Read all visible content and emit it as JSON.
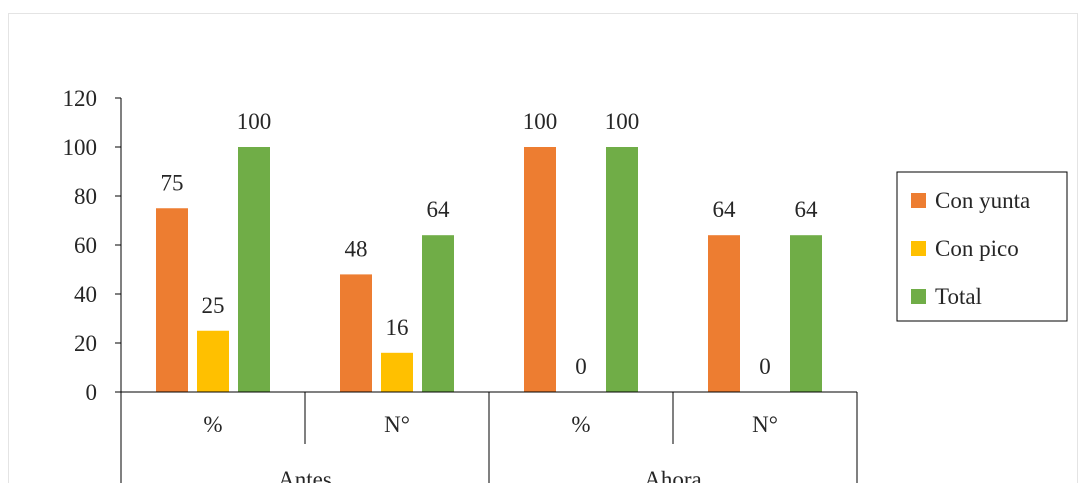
{
  "chart_data": {
    "type": "bar",
    "groups": [
      {
        "label": "Antes",
        "categories": [
          "%",
          "N°"
        ]
      },
      {
        "label": "Ahora",
        "categories": [
          "%",
          "N°"
        ]
      }
    ],
    "categories": [
      "%",
      "N°",
      "%",
      "N°"
    ],
    "series": [
      {
        "name": "Con yunta",
        "color": "#ED7D31",
        "values": [
          75,
          48,
          100,
          64
        ]
      },
      {
        "name": "Con pico",
        "color": "#FFC000",
        "values": [
          25,
          16,
          0,
          0
        ]
      },
      {
        "name": "Total",
        "color": "#70AD47",
        "values": [
          100,
          64,
          100,
          64
        ]
      }
    ],
    "yticks": [
      0,
      20,
      40,
      60,
      80,
      100,
      120
    ],
    "ylim": [
      0,
      120
    ],
    "data_labels": [
      [
        "75",
        "48",
        "100",
        "64"
      ],
      [
        "25",
        "16",
        "0",
        "0"
      ],
      [
        "100",
        "64",
        "100",
        "64"
      ]
    ],
    "legend": {
      "position": "right",
      "entries": [
        "Con yunta",
        "Con pico",
        "Total"
      ]
    },
    "grid": false
  }
}
